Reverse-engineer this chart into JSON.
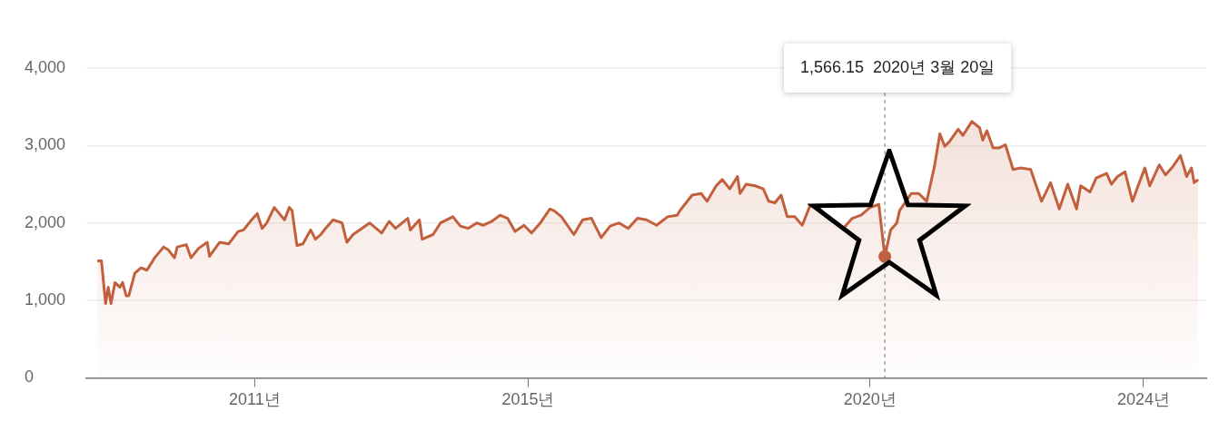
{
  "chart_data": {
    "type": "area",
    "color": "#c25f3c",
    "x": [
      "2008-09-13",
      "2008-10-05",
      "2008-10-27",
      "2008-11-10",
      "2008-11-25",
      "2008-12-16",
      "2009-01-12",
      "2009-01-26",
      "2009-02-14",
      "2009-02-28",
      "2009-04-01",
      "2009-05-04",
      "2009-06-05",
      "2009-07-16",
      "2009-09-02",
      "2009-09-28",
      "2009-10-30",
      "2009-11-14",
      "2010-01-01",
      "2010-01-26",
      "2010-03-07",
      "2010-04-23",
      "2010-05-05",
      "2010-06-28",
      "2010-08-15",
      "2010-10-05",
      "2010-11-03",
      "2010-12-16",
      "2011-01-15",
      "2011-02-10",
      "2011-03-07",
      "2011-04-16",
      "2011-06-10",
      "2011-07-05",
      "2011-07-20",
      "2011-08-15",
      "2011-09-16",
      "2011-10-27",
      "2011-11-22",
      "2011-12-20",
      "2012-01-15",
      "2012-02-24",
      "2012-04-12",
      "2012-05-08",
      "2012-06-10",
      "2012-07-27",
      "2012-09-06",
      "2012-11-10",
      "2012-12-06",
      "2012-12-20",
      "2013-01-23",
      "2013-03-29",
      "2013-04-12",
      "2013-05-30",
      "2013-06-14",
      "2013-08-11",
      "2013-09-20",
      "2013-11-25",
      "2014-01-04",
      "2014-02-14",
      "2014-04-01",
      "2014-05-05",
      "2014-06-21",
      "2014-08-04",
      "2014-09-13",
      "2014-10-23",
      "2014-12-10",
      "2015-01-19",
      "2015-03-07",
      "2015-04-27",
      "2015-05-19",
      "2015-06-28",
      "2015-09-02",
      "2015-10-19",
      "2015-12-05",
      "2016-01-26",
      "2016-03-14",
      "2016-05-01",
      "2016-06-18",
      "2016-08-07",
      "2016-09-24",
      "2016-11-17",
      "2017-01-15",
      "2017-03-07",
      "2017-03-22",
      "2017-05-26",
      "2017-07-13",
      "2017-08-14",
      "2017-10-01",
      "2017-11-03",
      "2017-12-13",
      "2018-01-23",
      "2018-02-06",
      "2018-03-10",
      "2018-04-27",
      "2018-06-10",
      "2018-07-09",
      "2018-08-11",
      "2018-09-13",
      "2018-10-16",
      "2018-11-25",
      "2019-01-04",
      "2019-02-14",
      "2019-04-01",
      "2019-05-23",
      "2019-08-11",
      "2019-09-28",
      "2019-11-14",
      "2020-01-01",
      "2020-02-17",
      "2020-03-20",
      "2020-04-20",
      "2020-05-23",
      "2020-06-07",
      "2020-08-08",
      "2020-09-17",
      "2020-10-30",
      "2020-12-10",
      "2021-01-08",
      "2021-02-03",
      "2021-02-28",
      "2021-04-16",
      "2021-05-11",
      "2021-06-28",
      "2021-08-08",
      "2021-08-25",
      "2021-09-16",
      "2021-10-19",
      "2021-11-22",
      "2021-12-24",
      "2022-02-03",
      "2022-03-14",
      "2022-05-08",
      "2022-07-05",
      "2022-08-22",
      "2022-10-08",
      "2022-11-22",
      "2023-01-08",
      "2023-01-30",
      "2023-03-21",
      "2023-04-23",
      "2023-06-18",
      "2023-07-13",
      "2023-08-15",
      "2023-09-24",
      "2023-11-03",
      "2023-12-06",
      "2024-01-08",
      "2024-02-03",
      "2024-03-25",
      "2024-04-27",
      "2024-06-06",
      "2024-07-16",
      "2024-08-18",
      "2024-09-13",
      "2024-09-27",
      "2024-10-19"
    ],
    "values": [
      1510,
      1510,
      960,
      1170,
      960,
      1230,
      1170,
      1230,
      1060,
      1060,
      1350,
      1420,
      1390,
      1550,
      1690,
      1650,
      1550,
      1690,
      1720,
      1550,
      1670,
      1750,
      1570,
      1750,
      1730,
      1890,
      1910,
      2040,
      2120,
      1930,
      2000,
      2200,
      2040,
      2200,
      2160,
      1710,
      1730,
      1910,
      1790,
      1850,
      1930,
      2040,
      2000,
      1750,
      1850,
      1930,
      2000,
      1870,
      1970,
      2020,
      1930,
      2060,
      1910,
      2040,
      1790,
      1850,
      2000,
      2080,
      1960,
      1930,
      2000,
      1970,
      2020,
      2100,
      2060,
      1890,
      1970,
      1870,
      2000,
      2180,
      2160,
      2080,
      1850,
      2040,
      2060,
      1810,
      1960,
      2000,
      1930,
      2060,
      2040,
      1970,
      2080,
      2100,
      2160,
      2360,
      2380,
      2280,
      2480,
      2560,
      2440,
      2600,
      2380,
      2500,
      2480,
      2440,
      2280,
      2260,
      2360,
      2080,
      2080,
      1970,
      2220,
      2200,
      2060,
      1930,
      2060,
      2100,
      2200,
      2240,
      1566.15,
      1910,
      2000,
      2160,
      2380,
      2380,
      2280,
      2730,
      3150,
      2990,
      3050,
      3210,
      3130,
      3310,
      3230,
      3070,
      3190,
      2970,
      2970,
      3010,
      2690,
      2710,
      2690,
      2280,
      2520,
      2180,
      2500,
      2180,
      2480,
      2400,
      2580,
      2640,
      2500,
      2600,
      2660,
      2280,
      2500,
      2710,
      2480,
      2750,
      2620,
      2730,
      2870,
      2600,
      2710,
      2520,
      2560
    ],
    "xlim": [
      "2008-07-16",
      "2024-12-01"
    ],
    "xticks": [
      {
        "value": "2011-01-01",
        "label": "2011년"
      },
      {
        "value": "2015-01-01",
        "label": "2015년"
      },
      {
        "value": "2020-01-01",
        "label": "2020년"
      },
      {
        "value": "2024-01-01",
        "label": "2024년"
      }
    ],
    "ylim": [
      0,
      4000
    ],
    "yticks": [
      0,
      {
        "value": 1000,
        "label": "1,000"
      },
      {
        "value": 2000,
        "label": "2,000"
      },
      {
        "value": 3000,
        "label": "3,000"
      },
      {
        "value": 4000,
        "label": "4,000"
      }
    ],
    "grid": "y",
    "ref_lines": [
      {
        "axis": "x",
        "value": "2020-03-20",
        "line_style": "dashed",
        "color": "#777777"
      }
    ],
    "annotations": [
      "1,566.15  2020년 3월 20일"
    ]
  }
}
